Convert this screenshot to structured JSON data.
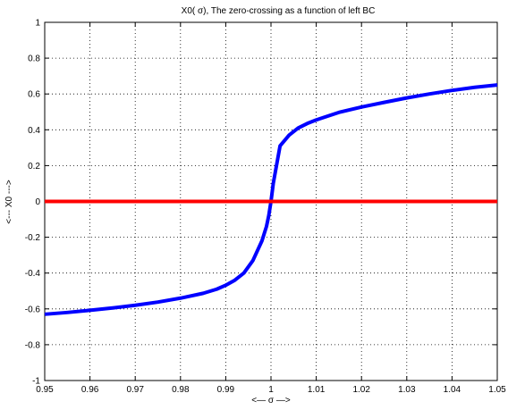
{
  "chart_data": {
    "type": "line",
    "title": "X0( σ), The zero-crossing as a function of left BC",
    "xlabel": "<— σ —>",
    "ylabel": "<--- X0 --->",
    "xlim": [
      0.95,
      1.05
    ],
    "ylim": [
      -1,
      1
    ],
    "xticks": [
      "0.95",
      "0.96",
      "0.97",
      "0.98",
      "0.99",
      "1",
      "1.01",
      "1.02",
      "1.03",
      "1.04",
      "1.05"
    ],
    "yticks": [
      "-1",
      "-0.8",
      "-0.6",
      "-0.4",
      "-0.2",
      "0",
      "0.2",
      "0.4",
      "0.6",
      "0.8",
      "1"
    ],
    "grid": true,
    "series": [
      {
        "color": "#0000ff",
        "x": [
          0.95,
          0.955,
          0.96,
          0.965,
          0.97,
          0.975,
          0.98,
          0.985,
          0.988,
          0.99,
          0.992,
          0.994,
          0.996,
          0.998,
          0.999,
          0.9995,
          1.0,
          1.0005,
          1.001,
          1.002,
          1.004,
          1.006,
          1.008,
          1.01,
          1.015,
          1.02,
          1.025,
          1.03,
          1.035,
          1.04,
          1.045,
          1.05
        ],
        "y": [
          -0.63,
          -0.62,
          -0.608,
          -0.595,
          -0.58,
          -0.562,
          -0.54,
          -0.513,
          -0.49,
          -0.468,
          -0.44,
          -0.4,
          -0.33,
          -0.22,
          -0.14,
          -0.08,
          0.0,
          0.1,
          0.17,
          0.31,
          0.37,
          0.41,
          0.435,
          0.455,
          0.497,
          0.527,
          0.553,
          0.578,
          0.6,
          0.62,
          0.637,
          0.65
        ]
      },
      {
        "color": "#ff0000",
        "x": [
          0.95,
          1.05
        ],
        "y": [
          0,
          0
        ]
      }
    ]
  }
}
